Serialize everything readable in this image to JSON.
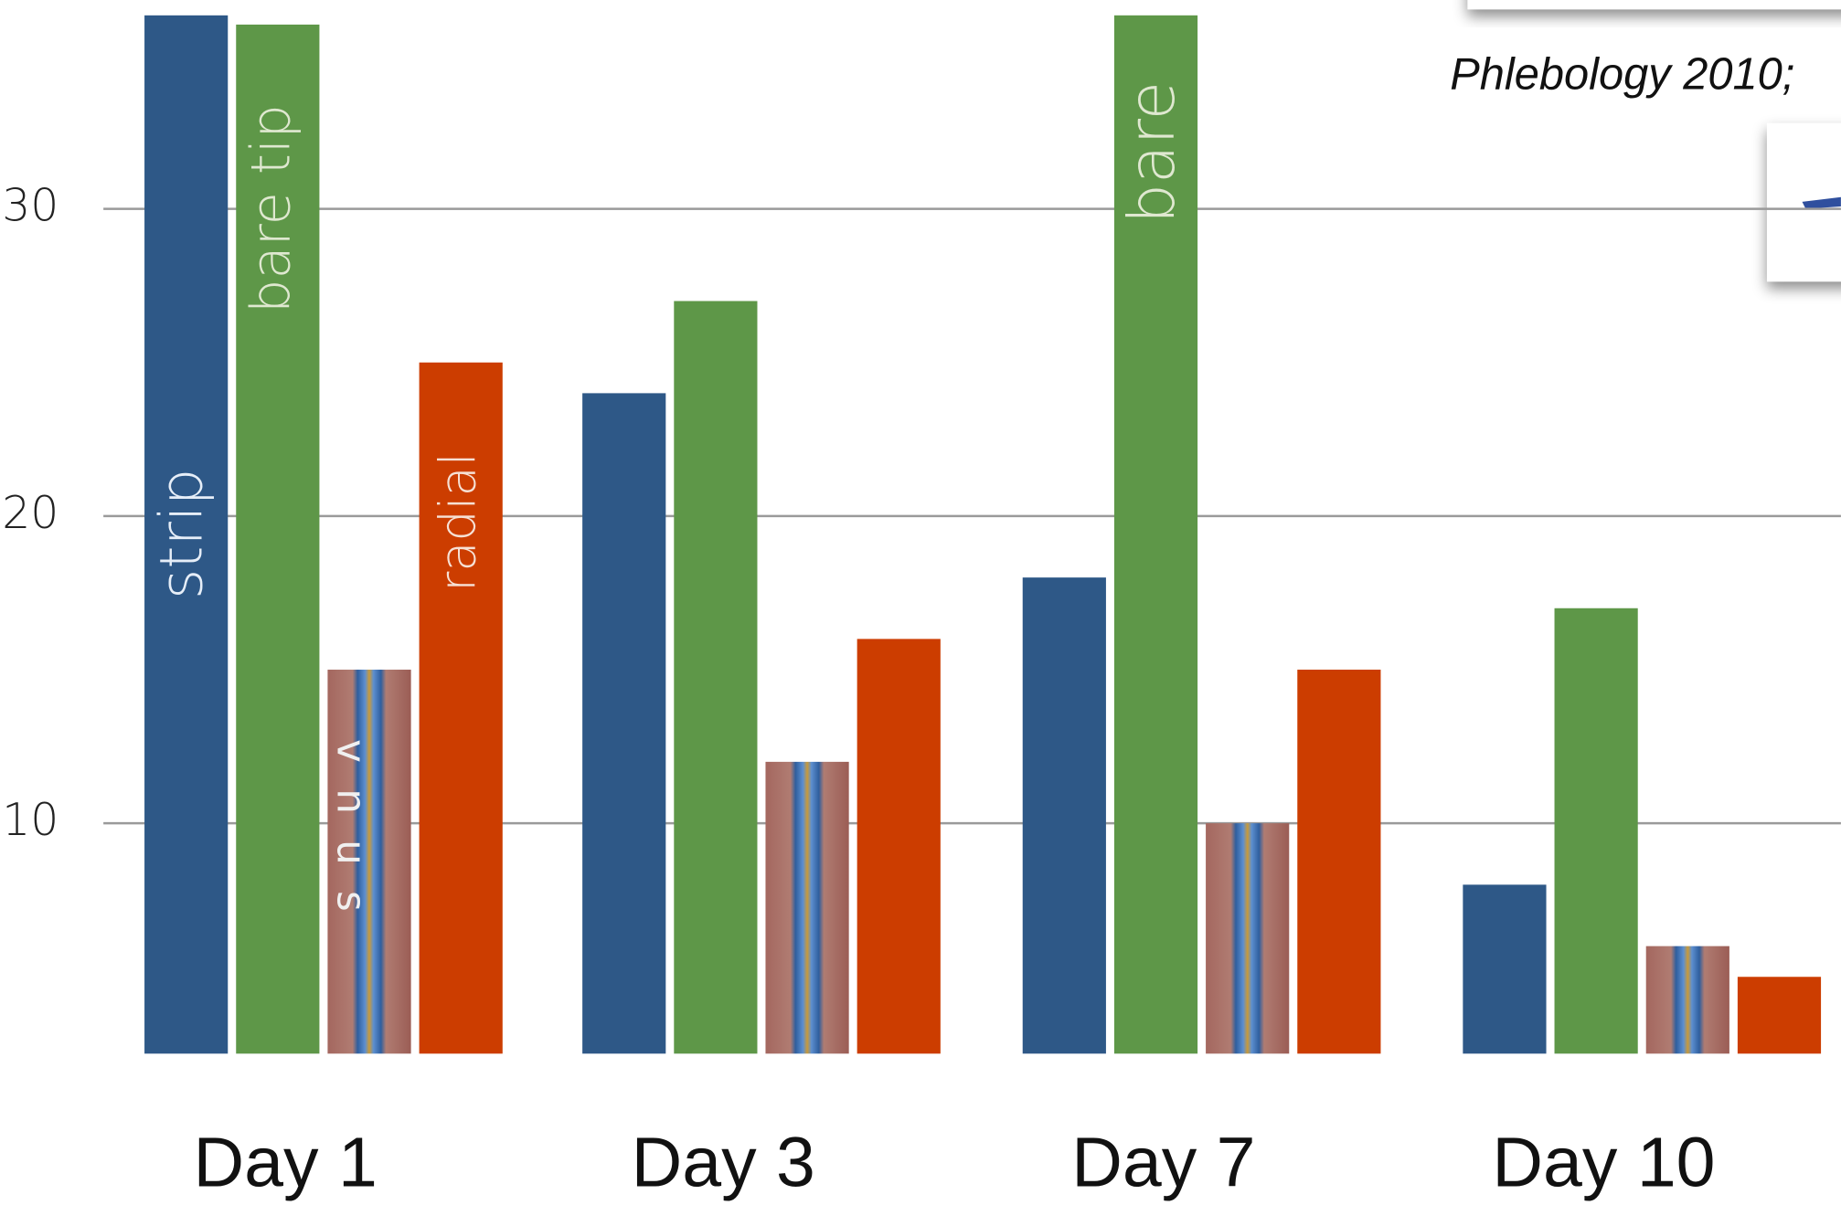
{
  "chart_data": {
    "type": "bar",
    "categories": [
      "Day 1",
      "Day 3",
      "Day 7",
      "Day 10"
    ],
    "series": [
      {
        "name": "strip",
        "color": "#2e5887",
        "values": [
          36.3,
          24,
          18,
          8
        ]
      },
      {
        "name": "bare tip",
        "color": "#5e9748",
        "values": [
          36,
          27,
          36.3,
          17
        ]
      },
      {
        "name": "vnus",
        "color": "#a4675f",
        "values": [
          15,
          12,
          10,
          6
        ]
      },
      {
        "name": "radial",
        "color": "#cc3d00",
        "values": [
          25,
          16,
          15,
          5
        ]
      }
    ],
    "annotations": [
      "bare",
      "Phlebology 2010;"
    ],
    "ylim": [
      2.5,
      36.8
    ],
    "yticks": [
      10,
      20,
      30
    ],
    "grid": true
  }
}
